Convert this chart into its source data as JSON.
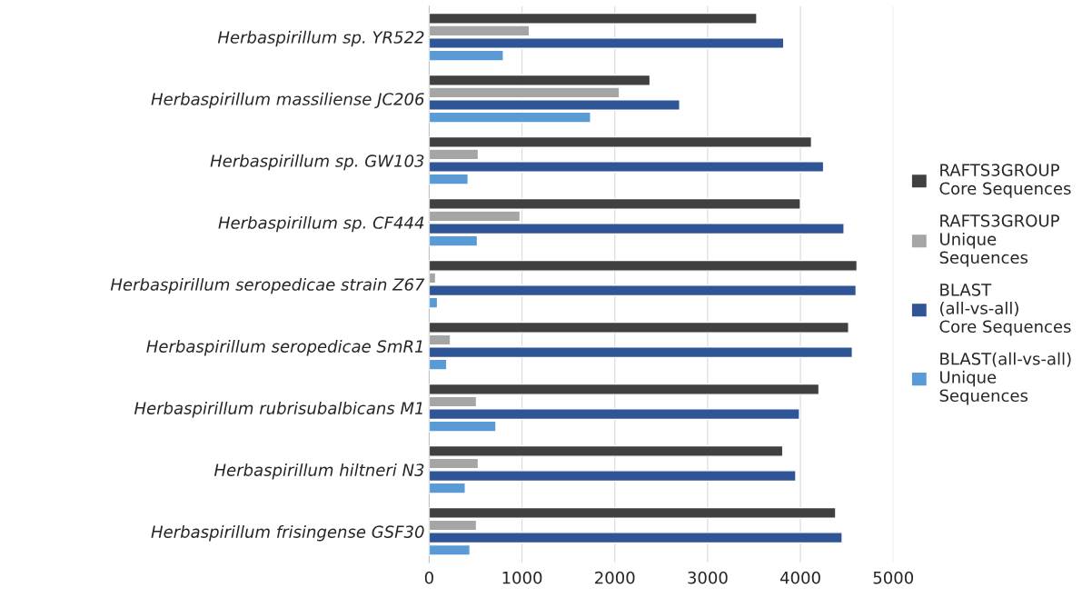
{
  "chart_data": {
    "type": "bar",
    "orientation": "horizontal",
    "categories": [
      "Herbaspirillum sp. YR522",
      "Herbaspirillum massiliense JC206",
      "Herbaspirillum sp. GW103",
      "Herbaspirillum sp. CF444",
      "Herbaspirillum seropedicae strain Z67",
      "Herbaspirillum seropedicae SmR1",
      "Herbaspirillum rubrisubalbicans M1",
      "Herbaspirillum hiltneri N3",
      "Herbaspirillum frisingense GSF30"
    ],
    "series": [
      {
        "name": "RAFTS3GROUP Core Sequences",
        "color": "#404040",
        "values": [
          3530,
          2380,
          4120,
          4000,
          4610,
          4520,
          4200,
          3810,
          4380
        ]
      },
      {
        "name": "RAFTS3GROUP Unique Sequences",
        "color": "#a5a5a5",
        "values": [
          1080,
          2050,
          530,
          980,
          70,
          230,
          510,
          530,
          510
        ]
      },
      {
        "name": "BLAST (all-vs-all) Core Sequences",
        "color": "#2f5597",
        "values": [
          3820,
          2700,
          4250,
          4470,
          4600,
          4560,
          3990,
          3950,
          4450
        ]
      },
      {
        "name": "BLAST(all-vs-all) Unique Sequences",
        "color": "#5b9bd5",
        "values": [
          800,
          1740,
          420,
          520,
          90,
          190,
          720,
          390,
          440
        ]
      }
    ],
    "xlim": [
      0,
      5000
    ],
    "xticks": [
      0,
      1000,
      2000,
      3000,
      4000,
      5000
    ],
    "grid": "x",
    "legend": "right"
  }
}
